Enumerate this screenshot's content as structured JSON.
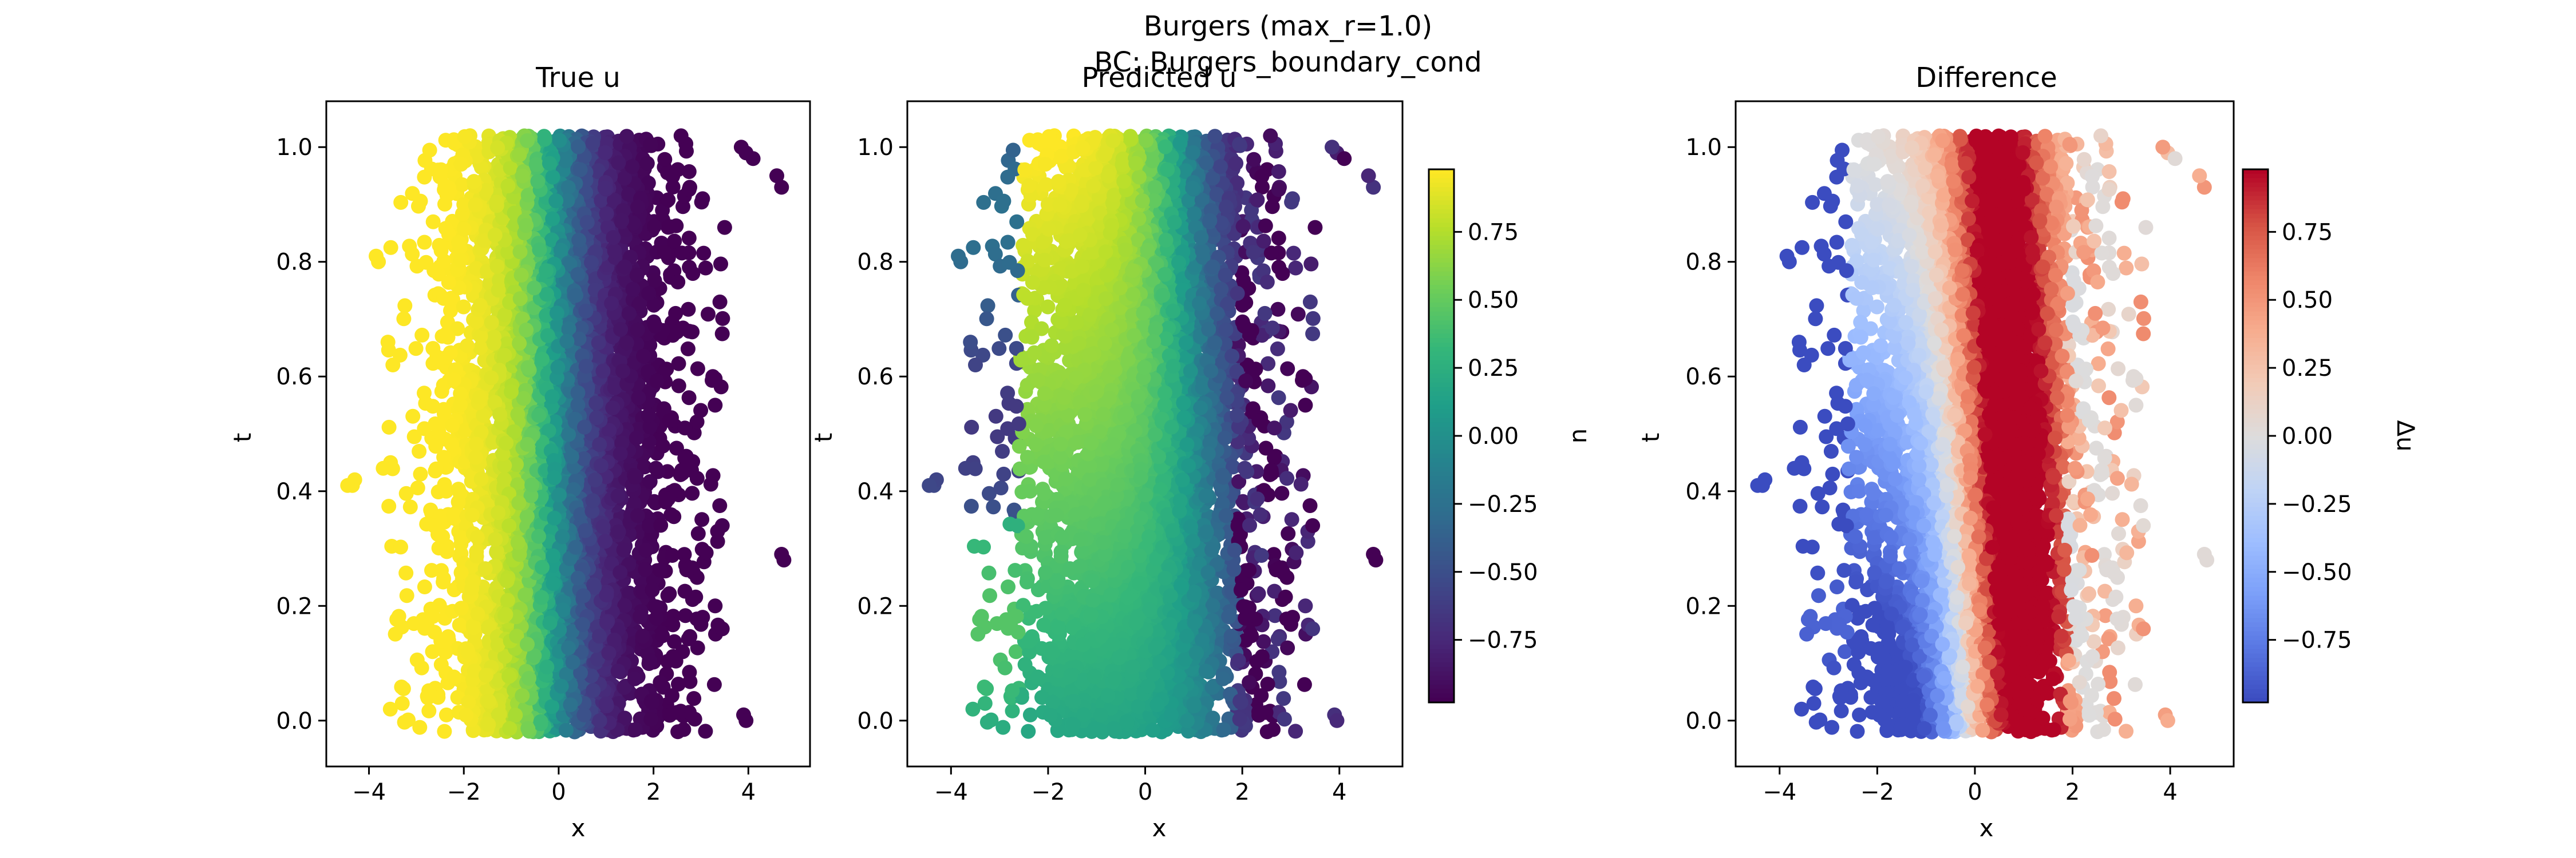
{
  "figure": {
    "title_line1": "Burgers (max_r=1.0)",
    "title_line2": "BC: Burgers_boundary_cond"
  },
  "chart_data": [
    {
      "type": "scatter",
      "title": "True u",
      "xlabel": "x",
      "ylabel": "t",
      "xlim": [
        -4.9,
        5.3
      ],
      "ylim": [
        -0.08,
        1.08
      ],
      "xticks": [
        "−4",
        "−2",
        "0",
        "2",
        "4"
      ],
      "xtick_values": [
        -4,
        -2,
        0,
        2,
        4
      ],
      "yticks": [
        "0.0",
        "0.2",
        "0.4",
        "0.6",
        "0.8",
        "1.0"
      ],
      "ytick_values": [
        0,
        0.2,
        0.4,
        0.6,
        0.8,
        1.0
      ],
      "colormap": "viridis",
      "color_field": "u = -tanh(x)",
      "description": "dense scatter over x in approx [-3.5, 3.5], t in [0, 1]; yellow for x<-1, purple for x>1"
    },
    {
      "type": "scatter",
      "title": "Predicted u",
      "xlabel": "x",
      "ylabel": "t",
      "xlim": [
        -4.9,
        5.3
      ],
      "ylim": [
        -0.08,
        1.08
      ],
      "xticks": [
        "−4",
        "−2",
        "0",
        "2",
        "4"
      ],
      "xtick_values": [
        -4,
        -2,
        0,
        2,
        4
      ],
      "yticks": [
        "0.0",
        "0.2",
        "0.4",
        "0.6",
        "0.8",
        "1.0"
      ],
      "ytick_values": [
        0,
        0.2,
        0.4,
        0.6,
        0.8,
        1.0
      ],
      "colormap": "viridis",
      "colorbar": {
        "label": "u",
        "range": [
          -0.98,
          0.98
        ],
        "ticks": [
          "0.75",
          "0.50",
          "0.25",
          "0.00",
          "−0.25",
          "−0.50",
          "−0.75"
        ],
        "tick_values": [
          0.75,
          0.5,
          0.25,
          0,
          -0.25,
          -0.5,
          -0.75
        ]
      }
    },
    {
      "type": "scatter",
      "title": "Difference",
      "xlabel": "x",
      "ylabel": "t",
      "xlim": [
        -4.9,
        5.3
      ],
      "ylim": [
        -0.08,
        1.08
      ],
      "xticks": [
        "−4",
        "−2",
        "0",
        "2",
        "4"
      ],
      "xtick_values": [
        -4,
        -2,
        0,
        2,
        4
      ],
      "yticks": [
        "0.0",
        "0.2",
        "0.4",
        "0.6",
        "0.8",
        "1.0"
      ],
      "ytick_values": [
        0,
        0.2,
        0.4,
        0.6,
        0.8,
        1.0
      ],
      "colormap": "coolwarm",
      "colorbar": {
        "label": "Δu",
        "range": [
          -0.98,
          0.98
        ],
        "ticks": [
          "0.75",
          "0.50",
          "0.25",
          "0.00",
          "−0.25",
          "−0.50",
          "−0.75"
        ],
        "tick_values": [
          0.75,
          0.5,
          0.25,
          0,
          -0.25,
          -0.5,
          -0.75
        ]
      }
    }
  ],
  "colors": {
    "viridis": [
      "#440154",
      "#482878",
      "#3e4989",
      "#31688e",
      "#26828e",
      "#1f9e89",
      "#35b779",
      "#6ece58",
      "#b5de2b",
      "#fde725"
    ],
    "coolwarm": [
      "#3b4cc0",
      "#5977e3",
      "#7b9ff9",
      "#9ebeff",
      "#c0d4f5",
      "#dddcdc",
      "#f2cbb7",
      "#f7ac8e",
      "#ee8468",
      "#d65244",
      "#b40426"
    ]
  }
}
